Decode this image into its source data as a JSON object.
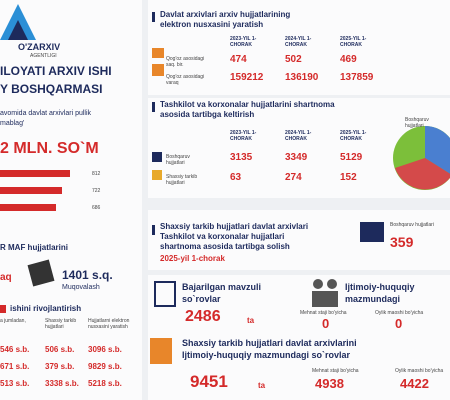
{
  "logo": {
    "name": "O'ZARXIV",
    "tagline": "AGENTLIGI"
  },
  "header": {
    "line1": "ILOYATI ARXIV ISHI",
    "line2": "Y BOSHQARMASI"
  },
  "income": {
    "text1": "avomida davlat arxivlari pullik",
    "text2": "mablag'",
    "total": "2 MLN. SO`M",
    "bars": [
      "812",
      "722",
      "686"
    ]
  },
  "maf": {
    "title": "R MAF hujjatlarini",
    "left": "aq",
    "value": "1401 s.q.",
    "label": "Muqovalash"
  },
  "develop": {
    "title": "ishini rivojlantirish",
    "headers": [
      "a jumladan,",
      "Shaxsiy tarkib hujjatlari",
      "Hujjatlarni elektron nusxasini yaratish"
    ],
    "rows": [
      [
        "546 s.b.",
        "506 s.b.",
        "3096 s.b."
      ],
      [
        "671 s.b.",
        "379 s.b.",
        "9829 s.b."
      ],
      [
        "513 s.b.",
        "3338 s.b.",
        "5218 s.b."
      ]
    ]
  },
  "digital": {
    "title1": "Davlat arxivlari arxiv hujjatlarining",
    "title2": "elektron nusxasini yaratish",
    "columns": [
      "2023-YIL 1-CHORAK",
      "2024-YIL 1-CHORAK",
      "2025-YIL 1-CHORAK"
    ],
    "rows": [
      {
        "label": "Qog'oz asosidagi saq. bir.",
        "values": [
          "474",
          "502",
          "469"
        ]
      },
      {
        "label": "Qog'oz asosidagi varaq",
        "values": [
          "159212",
          "136190",
          "137859"
        ]
      }
    ]
  },
  "contract": {
    "title1": "Tashkilot va korxonalar hujjatlarini shartnoma",
    "title2": "asosida tartibga keltirish",
    "columns": [
      "2023-YIL 1-CHORAK",
      "2024-YIL 1-CHORAK",
      "2025-YIL 1-CHORAK"
    ],
    "rows": [
      {
        "label": "Boshqaruv hujjatlari",
        "values": [
          "3135",
          "3349",
          "5129"
        ]
      },
      {
        "label": "Shaxsiy tarkib hujjatlari",
        "values": [
          "63",
          "274",
          "152"
        ]
      }
    ],
    "pie_label": "Boshqaruv hujjatlari"
  },
  "personal": {
    "title1": "Shaxsiy tarkib hujjatlari davlat arxivlari",
    "title2": "Tashkilot va korxonalar hujjatlari",
    "title3": "shartnoma asosida tartibga solish",
    "period": "2025-yil 1-chorak",
    "label": "Boshqaruv hujjatlari",
    "value": "359"
  },
  "requests": {
    "title1": "Bajarilgan mavzuli",
    "title2": "so`rovlar",
    "value": "2486",
    "unit": "ta"
  },
  "social": {
    "title1": "Ijtimoiy-huquqiy",
    "title2": "mazmundagi",
    "labels": [
      "Mehnat staji bo'yicha",
      "Oylik maoshi bo'yicha"
    ],
    "values": [
      "0",
      "0"
    ]
  },
  "social_total": {
    "title1": "Shaxsiy tarkib hujjatlari davlat arxivlarini",
    "title2": "Ijtimoiy-huquqiy mazmundagi so`rovlar",
    "value": "9451",
    "unit": "ta",
    "labels": [
      "Mehnat staji bo'yicha",
      "Oylik maoshi bo'yicha"
    ],
    "values": [
      "4938",
      "4422"
    ]
  }
}
